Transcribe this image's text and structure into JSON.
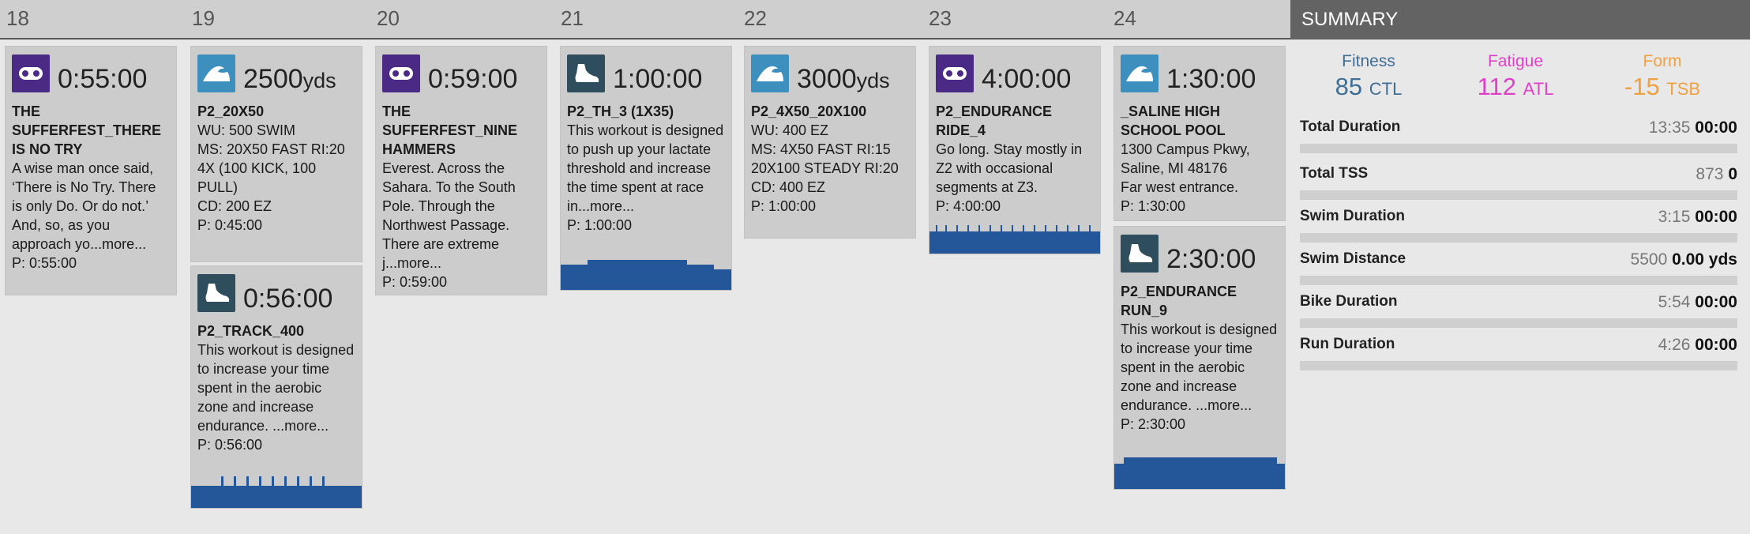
{
  "days": [
    "18",
    "19",
    "20",
    "21",
    "22",
    "23",
    "24"
  ],
  "summary_title": "SUMMARY",
  "workouts": [
    {
      "sport": "bike",
      "icon": "bike-icon",
      "duration": "0:55:00",
      "unit": "",
      "title": "THE SUFFERFEST_THERE IS NO TRY",
      "description": "A wise man once said, ‘There is No Try. There is only Do. Or do not.’ And, so, as you approach yo...more...",
      "planned": "P: 0:55:00"
    },
    {
      "sport": "swim",
      "icon": "swim-icon",
      "duration": "2500",
      "unit": "yds",
      "title": "P2_20X50",
      "description": "WU: 500 SWIM\nMS: 20X50 FAST RI:20\n4X (100 KICK, 100 PULL)\nCD: 200 EZ",
      "planned": "P: 0:45:00"
    },
    {
      "sport": "run",
      "icon": "run-icon",
      "duration": "0:56:00",
      "unit": "",
      "title": "P2_TRACK_400",
      "description": "This workout is designed to increase your time spent in the aerobic zone and increase endurance. ...more...",
      "planned": "P: 0:56:00"
    },
    {
      "sport": "bike",
      "icon": "bike-icon",
      "duration": "0:59:00",
      "unit": "",
      "title": "THE SUFFERFEST_NINE HAMMERS",
      "description": "Everest. Across the Sahara. To the South Pole. Through the Northwest Passage. There are extreme j...more...",
      "planned": "P: 0:59:00"
    },
    {
      "sport": "run",
      "icon": "run-icon",
      "duration": "1:00:00",
      "unit": "",
      "title": "P2_TH_3 (1X35)",
      "description": "This workout is designed to push up your lactate threshold and increase the time spent at race in...more...",
      "planned": "P: 1:00:00"
    },
    {
      "sport": "swim",
      "icon": "swim-icon",
      "duration": "3000",
      "unit": "yds",
      "title": "P2_4X50_20X100",
      "description": "WU: 400 EZ\nMS: 4X50 FAST RI:15 20X100 STEADY RI:20\nCD: 400 EZ",
      "planned": "P: 1:00:00"
    },
    {
      "sport": "bike",
      "icon": "bike-icon",
      "duration": "4:00:00",
      "unit": "",
      "title": "P2_ENDURANCE RIDE_4",
      "description": "Go long. Stay mostly in Z2 with occasional segments at Z3.",
      "planned": "P: 4:00:00"
    },
    {
      "sport": "swim",
      "icon": "swim-icon",
      "duration": "1:30:00",
      "unit": "",
      "title": "_SALINE HIGH SCHOOL POOL",
      "description": "1300 Campus Pkwy, Saline, MI 48176\nFar west entrance.",
      "planned": "P: 1:30:00"
    },
    {
      "sport": "run",
      "icon": "run-icon",
      "duration": "2:30:00",
      "unit": "",
      "title": "P2_ENDURANCE RUN_9",
      "description": "This workout is designed to increase your time spent in the aerobic zone and increase endurance. ...more...",
      "planned": "P: 2:30:00"
    }
  ],
  "metrics": [
    {
      "label": "Fitness",
      "value": "85",
      "unit": "CTL",
      "color": "#3f6e96"
    },
    {
      "label": "Fatigue",
      "value": "112",
      "unit": "ATL",
      "color": "#e040c8"
    },
    {
      "label": "Form",
      "value": "-15",
      "unit": "TSB",
      "color": "#f0a040"
    }
  ],
  "summary_rows": [
    {
      "label": "Total Duration",
      "planned": "13:35",
      "completed": "00:00"
    },
    {
      "label": "Total TSS",
      "planned": "873",
      "completed": "0"
    },
    {
      "label": "Swim Duration",
      "planned": "3:15",
      "completed": "00:00"
    },
    {
      "label": "Swim Distance",
      "planned": "5500",
      "completed": "0.00 yds"
    },
    {
      "label": "Bike Duration",
      "planned": "5:54",
      "completed": "00:00"
    },
    {
      "label": "Run Duration",
      "planned": "4:26",
      "completed": "00:00"
    }
  ],
  "colors": {
    "graph": "#24579a",
    "header_bg": "#cfcfcf",
    "summary_bg": "#636363"
  }
}
